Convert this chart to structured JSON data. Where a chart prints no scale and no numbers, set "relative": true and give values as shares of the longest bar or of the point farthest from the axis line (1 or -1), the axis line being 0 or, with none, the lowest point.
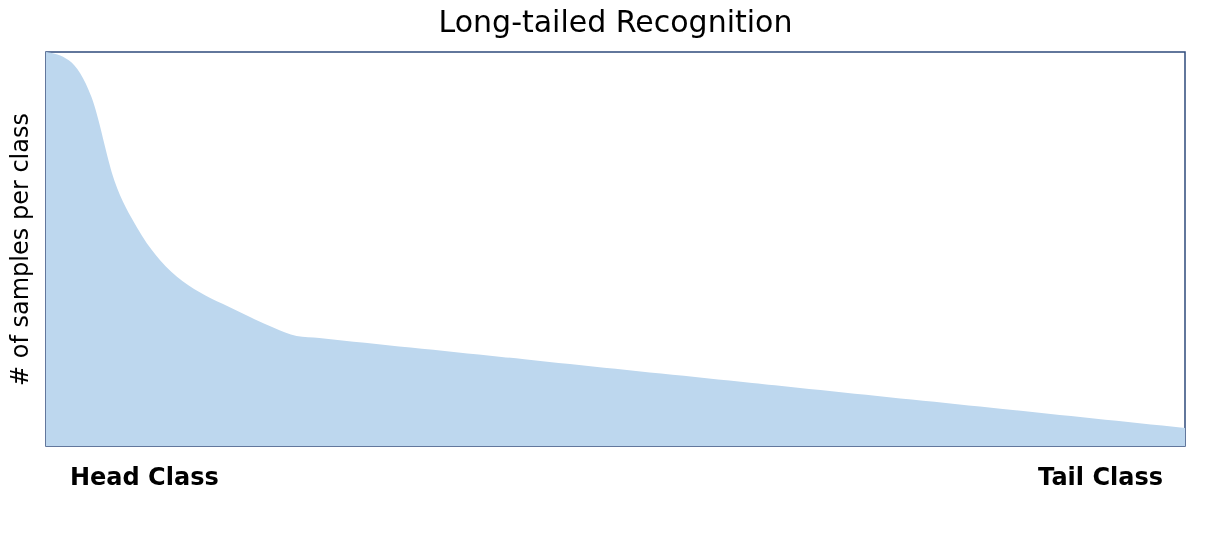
{
  "chart_data": {
    "type": "area",
    "title": "Long-tailed Recognition",
    "ylabel": "# of samples per class",
    "relative": true,
    "categories": [
      null,
      null,
      null,
      null,
      null,
      null,
      null,
      null,
      null,
      null,
      null,
      null,
      null,
      null,
      null,
      null,
      null,
      null,
      null,
      null,
      null,
      null,
      null,
      null,
      null,
      null,
      null,
      null,
      null,
      null,
      null,
      null,
      null,
      null,
      null,
      null,
      null,
      null,
      null,
      null,
      null,
      null,
      null,
      null,
      null,
      null,
      null,
      null,
      null,
      null,
      null
    ],
    "series": [
      {
        "color": "#bdd7ee",
        "values": [
          1.0,
          0.979,
          0.885,
          0.674,
          0.554,
          0.472,
          0.418,
          0.382,
          0.354,
          0.326,
          0.3,
          0.279,
          0.274,
          0.268,
          0.262,
          0.256,
          0.25,
          0.244,
          0.238,
          0.232,
          0.226,
          0.22,
          0.214,
          0.208,
          0.202,
          0.196,
          0.19,
          0.184,
          0.178,
          0.172,
          0.166,
          0.16,
          0.154,
          0.148,
          0.142,
          0.136,
          0.13,
          0.124,
          0.118,
          0.112,
          0.106,
          0.1,
          0.094,
          0.088,
          0.082,
          0.076,
          0.07,
          0.064,
          0.058,
          0.052,
          0.046
        ]
      }
    ],
    "annotations": [
      "Head Class",
      "Tail Class"
    ],
    "grid": false
  }
}
